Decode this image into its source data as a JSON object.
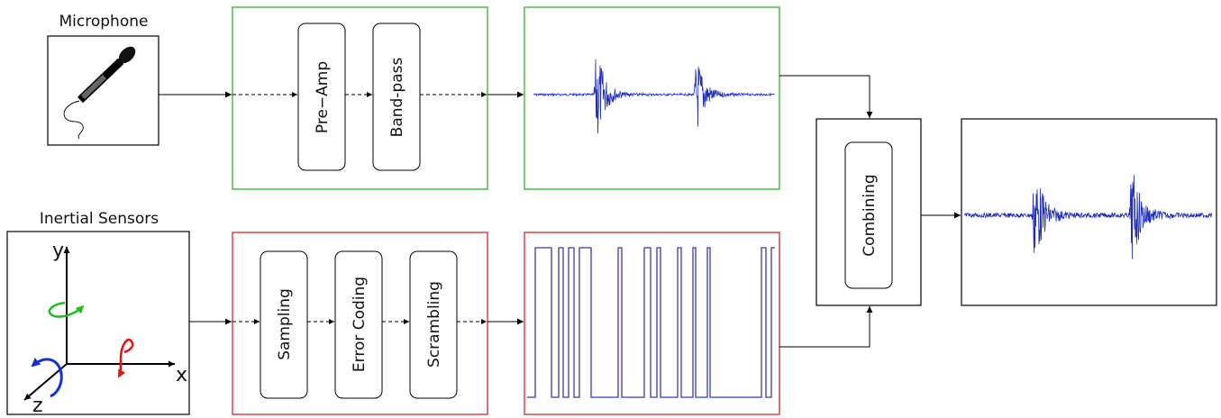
{
  "labels": {
    "microphone": "Microphone",
    "inertial_sensors": "Inertial Sensors"
  },
  "audio_chain": {
    "blocks": [
      "Pre−Amp",
      "Band-pass"
    ]
  },
  "inertial_chain": {
    "blocks": [
      "Sampling",
      "Error Coding",
      "Scrambling"
    ]
  },
  "combiner": {
    "label": "Combining"
  },
  "axes": {
    "x": "x",
    "y": "y",
    "z": "z"
  },
  "colors": {
    "audio_box_border": "#2db52d",
    "inertial_box_border": "#d42a2a",
    "waveform": "#1f2fb8",
    "square_wave": "#3a3aa0",
    "arrow_green": "#22bb22",
    "arrow_red": "#e01818",
    "arrow_blue": "#1530d0"
  },
  "icons": {
    "microphone": "microphone-icon",
    "axes": "3d-axes-icon"
  }
}
